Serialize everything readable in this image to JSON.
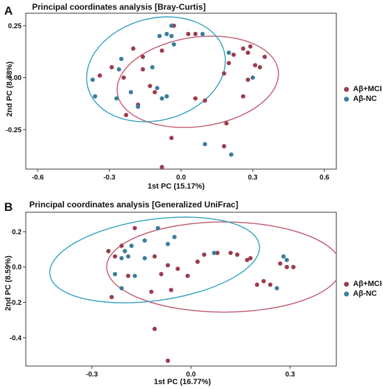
{
  "colors": {
    "mci": "#9c3c4c",
    "nc": "#3a7d9c",
    "mci_ellipse": "#c0566a",
    "nc_ellipse": "#2e9fbf"
  },
  "chart_data": [
    {
      "type": "scatter",
      "panel_label": "A",
      "title": "Principal coordinates analysis [Bray-Curtis]",
      "xlabel": "1st PC (15.17%)",
      "ylabel": "2nd PC (8.78%)",
      "xlim": [
        -0.65,
        0.65
      ],
      "ylim": [
        -0.44,
        0.31
      ],
      "xticks": [
        -0.6,
        -0.3,
        0.0,
        0.3,
        0.6
      ],
      "xtick_labels": [
        "-0.6",
        "-0.3",
        "0.0",
        "0.3",
        "0.6"
      ],
      "yticks": [
        0.25,
        0.0,
        -0.25
      ],
      "ytick_labels": [
        "0.25",
        "0.00",
        "-0.25"
      ],
      "grid": false,
      "legend_position": "right",
      "series": [
        {
          "name": "Aβ+MCI",
          "color_key": "mci",
          "points": [
            [
              0.35,
              0.1
            ],
            [
              0.33,
              0.05
            ],
            [
              0.31,
              0.06
            ],
            [
              0.29,
              0.15
            ],
            [
              0.28,
              0.12
            ],
            [
              0.26,
              0.14
            ],
            [
              0.28,
              -0.01
            ],
            [
              0.26,
              -0.09
            ],
            [
              0.22,
              0.11
            ],
            [
              0.18,
              0.02
            ],
            [
              0.2,
              0.07
            ],
            [
              0.19,
              -0.22
            ],
            [
              0.18,
              -0.33
            ],
            [
              0.1,
              -0.11
            ],
            [
              0.06,
              -0.1
            ],
            [
              0.06,
              0.21
            ],
            [
              0.03,
              0.21
            ],
            [
              -0.03,
              0.25
            ],
            [
              -0.08,
              0.13
            ],
            [
              -0.16,
              0.1
            ],
            [
              -0.2,
              0.14
            ],
            [
              -0.24,
              0.0
            ],
            [
              -0.29,
              0.05
            ],
            [
              -0.34,
              0.01
            ],
            [
              -0.16,
              0.04
            ],
            [
              -0.13,
              -0.04
            ],
            [
              -0.11,
              -0.07
            ],
            [
              -0.04,
              -0.29
            ],
            [
              -0.08,
              -0.43
            ],
            [
              -0.18,
              -0.13
            ],
            [
              -0.23,
              -0.18
            ]
          ]
        },
        {
          "name": "Aβ-NC",
          "color_key": "nc",
          "points": [
            [
              -0.37,
              -0.01
            ],
            [
              -0.36,
              -0.09
            ],
            [
              -0.26,
              0.04
            ],
            [
              -0.25,
              0.09
            ],
            [
              -0.21,
              -0.07
            ],
            [
              -0.18,
              -0.14
            ],
            [
              -0.12,
              0.05
            ],
            [
              -0.1,
              -0.05
            ],
            [
              -0.09,
              0.2
            ],
            [
              -0.06,
              0.21
            ],
            [
              -0.04,
              0.25
            ],
            [
              -0.03,
              0.16
            ],
            [
              -0.04,
              0.2
            ],
            [
              -0.08,
              -0.1
            ],
            [
              -0.06,
              -0.09
            ],
            [
              0.09,
              0.21
            ],
            [
              0.1,
              -0.32
            ],
            [
              0.21,
              -0.37
            ],
            [
              0.2,
              0.12
            ],
            [
              0.3,
              0.0
            ],
            [
              -0.27,
              -0.1
            ]
          ]
        }
      ],
      "ellipses": [
        {
          "series": "Aβ+MCI",
          "color_key": "mci_ellipse",
          "center": [
            0.07,
            -0.02
          ],
          "semi_axes": [
            0.34,
            0.215
          ],
          "angle_deg": 8
        },
        {
          "series": "Aβ-NC",
          "color_key": "nc_ellipse",
          "center": [
            -0.105,
            0.04
          ],
          "semi_axes": [
            0.295,
            0.245
          ],
          "angle_deg": 15
        }
      ]
    },
    {
      "type": "scatter",
      "panel_label": "B",
      "title": "Principal coordinates analysis [Generalized UniFrac]",
      "xlabel": "1st PC (16.77%)",
      "ylabel": "2nd PC (8.59%)",
      "xlim": [
        -0.5,
        0.44
      ],
      "ylim": [
        -0.56,
        0.31
      ],
      "xticks": [
        -0.3,
        0.0,
        0.3
      ],
      "xtick_labels": [
        "-0.3",
        "0.0",
        "0.3"
      ],
      "yticks": [
        0.2,
        0.0,
        -0.2,
        -0.4
      ],
      "ytick_labels": [
        "0.2",
        "0.0",
        "-0.2",
        "-0.4"
      ],
      "grid": false,
      "legend_position": "right",
      "series": [
        {
          "name": "Aβ+MCI",
          "color_key": "mci",
          "points": [
            [
              0.31,
              0.0
            ],
            [
              0.29,
              0.0
            ],
            [
              0.27,
              0.02
            ],
            [
              0.24,
              -0.1
            ],
            [
              0.22,
              -0.08
            ],
            [
              0.2,
              -0.1
            ],
            [
              0.18,
              0.05
            ],
            [
              0.17,
              0.04
            ],
            [
              0.14,
              0.07
            ],
            [
              0.12,
              0.08
            ],
            [
              0.08,
              0.08
            ],
            [
              0.04,
              0.07
            ],
            [
              0.02,
              0.03
            ],
            [
              -0.01,
              -0.05
            ],
            [
              -0.04,
              -0.01
            ],
            [
              -0.06,
              -0.13
            ],
            [
              -0.09,
              -0.04
            ],
            [
              -0.07,
              0.01
            ],
            [
              -0.11,
              0.06
            ],
            [
              -0.12,
              -0.14
            ],
            [
              -0.19,
              -0.05
            ],
            [
              -0.23,
              0.06
            ],
            [
              -0.25,
              0.09
            ],
            [
              -0.17,
              0.22
            ],
            [
              -0.11,
              -0.35
            ],
            [
              -0.07,
              -0.53
            ],
            [
              -0.24,
              -0.17
            ],
            [
              -0.21,
              0.12
            ]
          ]
        },
        {
          "name": "Aβ-NC",
          "color_key": "nc",
          "points": [
            [
              -0.21,
              0.05
            ],
            [
              -0.19,
              0.06
            ],
            [
              -0.18,
              0.12
            ],
            [
              -0.14,
              0.15
            ],
            [
              -0.14,
              0.05
            ],
            [
              -0.1,
              0.22
            ],
            [
              -0.07,
              0.13
            ],
            [
              -0.05,
              0.17
            ],
            [
              -0.21,
              -0.12
            ],
            [
              -0.23,
              -0.04
            ],
            [
              -0.17,
              -0.05
            ],
            [
              0.07,
              0.08
            ],
            [
              0.28,
              0.06
            ],
            [
              0.29,
              0.04
            ],
            [
              0.26,
              -0.12
            ],
            [
              -0.2,
              0.09
            ]
          ]
        }
      ],
      "ellipses": [
        {
          "series": "Aβ+MCI",
          "color_key": "mci_ellipse",
          "center": [
            0.1,
            0.0
          ],
          "semi_axes": [
            0.355,
            0.255
          ],
          "angle_deg": 0
        },
        {
          "series": "Aβ-NC",
          "color_key": "nc_ellipse",
          "center": [
            -0.11,
            0.04
          ],
          "semi_axes": [
            0.32,
            0.23
          ],
          "angle_deg": 8
        }
      ]
    }
  ]
}
